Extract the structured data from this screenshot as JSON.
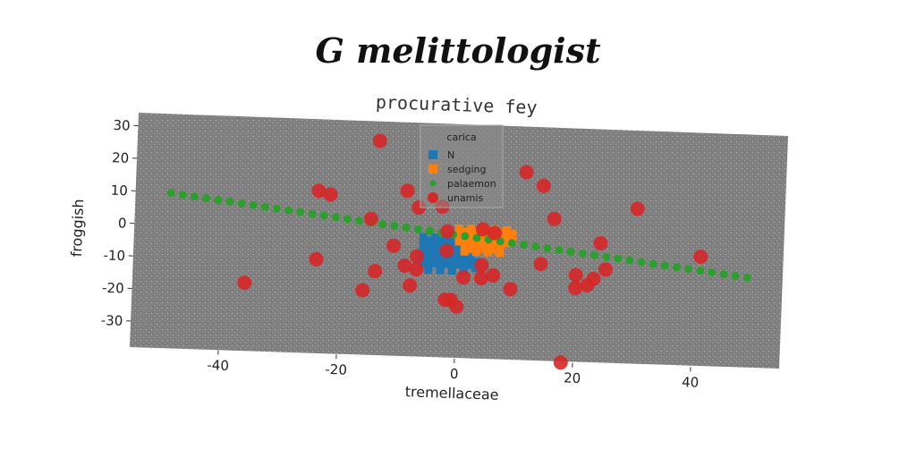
{
  "suptitle": "G melittologist",
  "chart_data": {
    "type": "scatter",
    "title": "procurative fey",
    "xlabel": "tremellaceae",
    "ylabel": "froggish",
    "xlim": [
      -55,
      55
    ],
    "ylim": [
      -38,
      34
    ],
    "xticks": [
      -40,
      -20,
      0,
      20,
      40
    ],
    "yticks": [
      -30,
      -20,
      -10,
      0,
      10,
      20,
      30
    ],
    "grid": false,
    "legend": {
      "title": "carica",
      "placement": "top-center"
    },
    "series": [
      {
        "name": "N",
        "color": "#1f77b4",
        "marker": "square",
        "points": [
          [
            -6,
            -1
          ],
          [
            -5,
            -2
          ],
          [
            -4,
            -1
          ],
          [
            -3,
            -2
          ],
          [
            -2,
            -1
          ],
          [
            -1,
            -2
          ],
          [
            0,
            -1
          ],
          [
            1,
            -2
          ],
          [
            -6,
            -3
          ],
          [
            -5,
            -4
          ],
          [
            -4,
            -3
          ],
          [
            -3,
            -4
          ],
          [
            -2,
            -3
          ],
          [
            -1,
            -4
          ],
          [
            0,
            -3
          ],
          [
            1,
            -4
          ],
          [
            -6,
            -5
          ],
          [
            -5,
            -6
          ],
          [
            -4,
            -5
          ],
          [
            -3,
            -6
          ],
          [
            -2,
            -5
          ],
          [
            -1,
            -6
          ],
          [
            0,
            -5
          ],
          [
            1,
            -6
          ],
          [
            -6,
            -7
          ],
          [
            -5,
            -8
          ],
          [
            -4,
            -7
          ],
          [
            -3,
            -8
          ],
          [
            -2,
            -7
          ],
          [
            -1,
            -8
          ],
          [
            0,
            -7
          ],
          [
            1,
            -8
          ],
          [
            -6,
            -9
          ],
          [
            -5,
            -10
          ],
          [
            -4,
            -9
          ],
          [
            -3,
            -10
          ],
          [
            -2,
            -9
          ],
          [
            -1,
            -10
          ],
          [
            0,
            -9
          ],
          [
            1,
            -10
          ],
          [
            2,
            -7
          ],
          [
            2,
            -9
          ],
          [
            3,
            -8
          ],
          [
            3,
            -10
          ],
          [
            -5,
            -11
          ],
          [
            -3,
            -11
          ],
          [
            -1,
            -11
          ],
          [
            1,
            -11
          ]
        ]
      },
      {
        "name": "sedging",
        "color": "#ff7f0e",
        "marker": "square",
        "points": [
          [
            0,
            2
          ],
          [
            1,
            1
          ],
          [
            2,
            2
          ],
          [
            3,
            1
          ],
          [
            4,
            2
          ],
          [
            5,
            1
          ],
          [
            6,
            2
          ],
          [
            7,
            1
          ],
          [
            8,
            2
          ],
          [
            9,
            1
          ],
          [
            0,
            0
          ],
          [
            1,
            -1
          ],
          [
            2,
            0
          ],
          [
            3,
            -1
          ],
          [
            4,
            0
          ],
          [
            5,
            -1
          ],
          [
            6,
            0
          ],
          [
            7,
            -1
          ],
          [
            8,
            0
          ],
          [
            9,
            -1
          ],
          [
            0,
            -2
          ],
          [
            1,
            -3
          ],
          [
            2,
            -2
          ],
          [
            3,
            -3
          ],
          [
            4,
            -2
          ],
          [
            5,
            -3
          ],
          [
            6,
            -2
          ],
          [
            7,
            -3
          ],
          [
            8,
            -2
          ],
          [
            1,
            -5
          ],
          [
            3,
            -5
          ],
          [
            5,
            -5
          ],
          [
            7,
            -5
          ],
          [
            2,
            -4
          ],
          [
            4,
            -4
          ],
          [
            6,
            -4
          ]
        ]
      },
      {
        "name": "palaemon",
        "color": "#2ca02c",
        "marker": "circle-small",
        "points": [
          [
            -49,
            9.7
          ],
          [
            -47,
            9.3
          ],
          [
            -45,
            8.9
          ],
          [
            -43,
            8.5
          ],
          [
            -41,
            8.1
          ],
          [
            -39,
            7.7
          ],
          [
            -37,
            7.3
          ],
          [
            -35,
            6.9
          ],
          [
            -33,
            6.5
          ],
          [
            -31,
            6.1
          ],
          [
            -29,
            5.7
          ],
          [
            -27,
            5.3
          ],
          [
            -25,
            4.9
          ],
          [
            -23,
            4.5
          ],
          [
            -21,
            4.1
          ],
          [
            -19,
            3.7
          ],
          [
            -17,
            3.3
          ],
          [
            -15,
            2.9
          ],
          [
            -13,
            2.5
          ],
          [
            -11,
            2.1
          ],
          [
            -9,
            1.7
          ],
          [
            -7,
            1.3
          ],
          [
            -5,
            0.9
          ],
          [
            -3,
            0.5
          ],
          [
            -1,
            0.1
          ],
          [
            1,
            -0.3
          ],
          [
            3,
            -0.7
          ],
          [
            5,
            -1.1
          ],
          [
            7,
            -1.5
          ],
          [
            9,
            -1.9
          ],
          [
            11,
            -2.3
          ],
          [
            13,
            -2.7
          ],
          [
            15,
            -3.1
          ],
          [
            17,
            -3.5
          ],
          [
            19,
            -3.9
          ],
          [
            21,
            -4.3
          ],
          [
            23,
            -4.7
          ],
          [
            25,
            -5.1
          ],
          [
            27,
            -5.5
          ],
          [
            29,
            -5.9
          ],
          [
            31,
            -6.3
          ],
          [
            33,
            -6.7
          ],
          [
            35,
            -7.1
          ],
          [
            37,
            -7.5
          ],
          [
            39,
            -7.9
          ],
          [
            41,
            -8.3
          ],
          [
            43,
            -8.7
          ],
          [
            45,
            -9.1
          ],
          [
            47,
            -9.5
          ],
          [
            49,
            -9.9
          ]
        ]
      },
      {
        "name": "unamis",
        "color": "#d62728",
        "marker": "circle-large",
        "points": [
          [
            -14,
            28
          ],
          [
            -24,
            12
          ],
          [
            -22,
            11
          ],
          [
            -9,
            13
          ],
          [
            -7,
            8
          ],
          [
            -3,
            8.5
          ],
          [
            11,
            20
          ],
          [
            14,
            16
          ],
          [
            16,
            6
          ],
          [
            30,
            10
          ],
          [
            -15,
            4
          ],
          [
            -2,
            1
          ],
          [
            4,
            2
          ],
          [
            6,
            1
          ],
          [
            -11,
            -4
          ],
          [
            -24,
            -9
          ],
          [
            -14,
            -12
          ],
          [
            -9,
            -10
          ],
          [
            -7,
            -11
          ],
          [
            -7,
            -7
          ],
          [
            -8,
            -16
          ],
          [
            -16,
            -18
          ],
          [
            -36,
            -17
          ],
          [
            -2,
            -5
          ],
          [
            -2,
            -20
          ],
          [
            -1,
            -20
          ],
          [
            0,
            -22
          ],
          [
            1,
            -13
          ],
          [
            4,
            -13
          ],
          [
            6,
            -12
          ],
          [
            4,
            -9
          ],
          [
            9,
            -16
          ],
          [
            14,
            -8
          ],
          [
            20,
            -11
          ],
          [
            20,
            -15
          ],
          [
            22,
            -14
          ],
          [
            23,
            -12
          ],
          [
            24,
            -1
          ],
          [
            25,
            -9
          ],
          [
            41,
            -4
          ],
          [
            18,
            -38
          ]
        ]
      }
    ]
  }
}
